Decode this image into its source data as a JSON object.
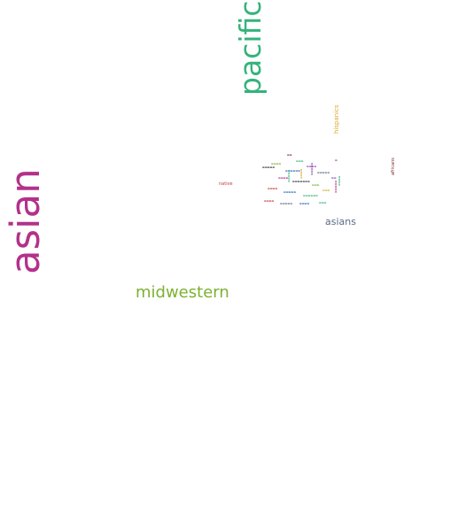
{
  "words": {
    "asian": {
      "text": "asian",
      "color": "#b3318a"
    },
    "pacific": {
      "text": "pacific",
      "color": "#34b37a"
    },
    "midwestern": {
      "text": "midwestern",
      "color": "#7db131"
    },
    "asians": {
      "text": "asians",
      "color": "#5b6a84"
    },
    "hispanics": {
      "text": "hispanics",
      "color": "#dba82a"
    },
    "africans": {
      "text": "africans",
      "color": "#7a2d2a"
    },
    "native": {
      "text": "native",
      "color": "#c43a3a"
    }
  },
  "cluster_colors": [
    "#b3318a",
    "#34b37a",
    "#7db131",
    "#5b6a84",
    "#dba82a",
    "#7a2d2a",
    "#2a65b8",
    "#c43a3a",
    "#8a3fb3",
    "#333333"
  ]
}
